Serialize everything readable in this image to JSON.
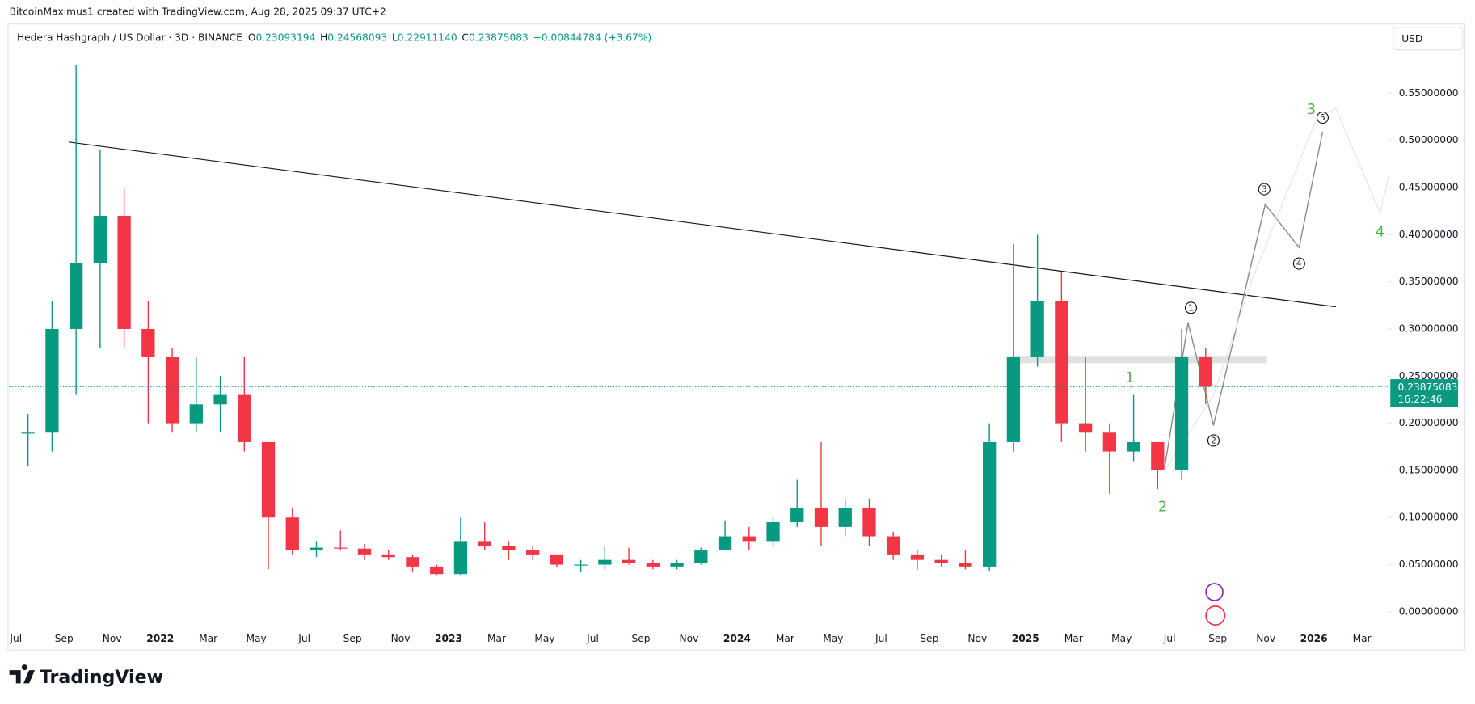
{
  "chart_data": {
    "type": "candlestick",
    "attribution": "BitcoinMaximus1 created with TradingView.com, Aug 28, 2025 09:37 UTC+2",
    "title": "Hedera Hashgraph / US Dollar · 3D · BINANCE",
    "header": [
      {
        "label": "O",
        "value": "0.23093194"
      },
      {
        "label": "H",
        "value": "0.24568093"
      },
      {
        "label": "L",
        "value": "0.22911140"
      },
      {
        "label": "C",
        "value": "0.23875083"
      }
    ],
    "change": "+0.00844784 (+3.67%)",
    "currency": "USD",
    "last_price": 0.23875083,
    "countdown": "16:22:46",
    "brand": "TradingView",
    "categories": [
      "Jul",
      null,
      "Sep",
      null,
      "Nov",
      null,
      "2022",
      null,
      "Mar",
      null,
      "May",
      null,
      "Jul",
      null,
      "Sep",
      null,
      "Nov",
      null,
      "2023",
      null,
      "Mar",
      null,
      "May",
      null,
      "Jul",
      null,
      "Sep",
      null,
      "Nov",
      null,
      "2024",
      null,
      "Mar",
      null,
      "May",
      null,
      "Jul",
      null,
      "Sep",
      null,
      "Nov",
      null,
      "2025",
      null,
      "Mar",
      null,
      "May",
      null,
      "Jul",
      null,
      "Sep",
      null,
      "Nov",
      null,
      "2026",
      null,
      "Mar"
    ],
    "open": [
      0.19,
      0.19,
      0.3,
      0.37,
      0.42,
      0.3,
      0.27,
      0.2,
      0.22,
      0.23,
      0.18,
      0.1,
      0.065,
      0.068,
      0.067,
      0.06,
      0.058,
      0.048,
      0.04,
      0.075,
      0.07,
      0.065,
      0.06,
      0.05,
      0.05,
      0.055,
      0.052,
      0.048,
      0.052,
      0.065,
      0.08,
      0.075,
      0.095,
      0.11,
      0.09,
      0.11,
      0.08,
      0.06,
      0.055,
      0.052,
      0.048,
      0.18,
      0.27,
      0.33,
      0.2,
      0.19,
      0.17,
      0.18,
      0.15,
      0.27,
      null,
      null,
      null,
      null,
      null,
      null,
      null
    ],
    "high": [
      0.21,
      0.33,
      0.58,
      0.49,
      0.45,
      0.33,
      0.28,
      0.27,
      0.25,
      0.27,
      0.18,
      0.11,
      0.075,
      0.086,
      0.072,
      0.065,
      0.06,
      0.05,
      0.1,
      0.095,
      0.075,
      0.07,
      0.06,
      0.055,
      0.07,
      0.068,
      0.055,
      0.055,
      0.068,
      0.097,
      0.09,
      0.1,
      0.14,
      0.18,
      0.12,
      0.12,
      0.085,
      0.065,
      0.06,
      0.065,
      0.2,
      0.39,
      0.4,
      0.36,
      0.27,
      0.2,
      0.23,
      0.18,
      0.3,
      0.28,
      null,
      null,
      null,
      null,
      null,
      null,
      null
    ],
    "low": [
      0.155,
      0.17,
      0.23,
      0.28,
      0.28,
      0.2,
      0.19,
      0.19,
      0.19,
      0.17,
      0.045,
      0.06,
      0.058,
      0.065,
      0.055,
      0.055,
      0.042,
      0.038,
      0.038,
      0.065,
      0.055,
      0.055,
      0.047,
      0.042,
      0.045,
      0.05,
      0.045,
      0.045,
      0.05,
      0.065,
      0.065,
      0.07,
      0.09,
      0.07,
      0.08,
      0.07,
      0.055,
      0.045,
      0.048,
      0.045,
      0.043,
      0.17,
      0.26,
      0.18,
      0.17,
      0.125,
      0.16,
      0.13,
      0.14,
      0.22,
      null,
      null,
      null,
      null,
      null,
      null,
      null
    ],
    "close": [
      0.19,
      0.3,
      0.37,
      0.42,
      0.3,
      0.27,
      0.2,
      0.22,
      0.23,
      0.18,
      0.1,
      0.065,
      0.068,
      0.067,
      0.06,
      0.058,
      0.048,
      0.04,
      0.075,
      0.07,
      0.065,
      0.06,
      0.05,
      0.05,
      0.055,
      0.052,
      0.048,
      0.052,
      0.065,
      0.08,
      0.075,
      0.095,
      0.11,
      0.09,
      0.11,
      0.08,
      0.06,
      0.055,
      0.052,
      0.048,
      0.18,
      0.27,
      0.33,
      0.2,
      0.19,
      0.17,
      0.18,
      0.15,
      0.27,
      0.23875083,
      null,
      null,
      null,
      null,
      null,
      null,
      null
    ],
    "up_color": "#089981",
    "down_color": "#f23645",
    "ylim": [
      -0.018,
      0.622
    ],
    "yticks": [
      {
        "value": 0,
        "label": "0.00000000"
      },
      {
        "value": 0.05,
        "label": "0.05000000"
      },
      {
        "value": 0.1,
        "label": "0.10000000"
      },
      {
        "value": 0.15,
        "label": "0.15000000"
      },
      {
        "value": 0.2,
        "label": "0.20000000"
      },
      {
        "value": 0.25,
        "label": "0.25000000"
      },
      {
        "value": 0.3,
        "label": "0.30000000"
      },
      {
        "value": 0.35,
        "label": "0.35000000"
      },
      {
        "value": 0.4,
        "label": "0.40000000"
      },
      {
        "value": 0.45,
        "label": "0.45000000"
      },
      {
        "value": 0.5,
        "label": "0.50000000"
      },
      {
        "value": 0.55,
        "label": "0.55000000"
      }
    ],
    "wave_minor": [
      "1",
      "2",
      "3",
      "4",
      "5"
    ],
    "wave_major": [
      "1",
      "2",
      "3",
      "4"
    ]
  }
}
